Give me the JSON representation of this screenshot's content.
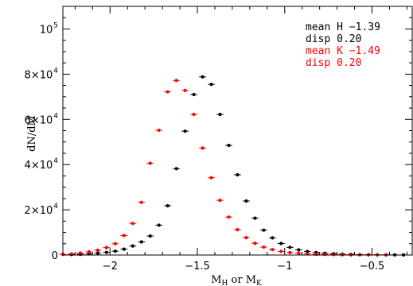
{
  "chart_data": {
    "type": "scatter",
    "xlabel": "M_H or M_K",
    "ylabel": "dN/dM",
    "xlim": [
      -2.27,
      -0.27
    ],
    "ylim": [
      0,
      110000
    ],
    "grid": false,
    "x_ticks": [
      {
        "value": -2,
        "label": "−2"
      },
      {
        "value": -1.5,
        "label": "−1.5"
      },
      {
        "value": -1,
        "label": "−1"
      },
      {
        "value": -0.5,
        "label": "−0.5"
      }
    ],
    "y_ticks": [
      {
        "value": 0,
        "mantissa": "0",
        "exp": ""
      },
      {
        "value": 20000,
        "mantissa": "2×10",
        "exp": "4"
      },
      {
        "value": 40000,
        "mantissa": "4×10",
        "exp": "4"
      },
      {
        "value": 60000,
        "mantissa": "6×10",
        "exp": "4"
      },
      {
        "value": 80000,
        "mantissa": "8×10",
        "exp": "4"
      },
      {
        "value": 100000,
        "mantissa": "10",
        "exp": "5"
      }
    ],
    "annotations": [
      {
        "text": "mean H −1.39",
        "color": "#000000"
      },
      {
        "text": "disp  0.20",
        "color": "#000000"
      },
      {
        "text": "mean K −1.49",
        "color": "#ff0000"
      },
      {
        "text": "disp  0.20",
        "color": "#ff0000"
      }
    ],
    "series": [
      {
        "color": "#000000",
        "xerr": 0.02,
        "x": [
          -2.22,
          -2.17,
          -2.12,
          -2.07,
          -2.02,
          -1.97,
          -1.92,
          -1.87,
          -1.82,
          -1.77,
          -1.72,
          -1.67,
          -1.62,
          -1.57,
          -1.52,
          -1.47,
          -1.42,
          -1.37,
          -1.32,
          -1.27,
          -1.22,
          -1.17,
          -1.12,
          -1.07,
          -1.02,
          -0.97,
          -0.92,
          -0.87,
          -0.82,
          -0.77,
          -0.72,
          -0.67,
          -0.62,
          -0.57,
          -0.52,
          -0.47,
          -0.42,
          -0.37,
          -0.32
        ],
        "y": [
          200,
          300,
          500,
          800,
          1200,
          1700,
          2600,
          4000,
          5800,
          8400,
          13200,
          21800,
          38200,
          54800,
          71000,
          78800,
          75500,
          62200,
          48500,
          35500,
          23900,
          16300,
          11000,
          7600,
          5100,
          3400,
          2300,
          1600,
          1100,
          800,
          600,
          400,
          300,
          200,
          150,
          100,
          80,
          60,
          40
        ]
      },
      {
        "color": "#ff0000",
        "xerr": 0.02,
        "x": [
          -2.27,
          -2.22,
          -2.17,
          -2.12,
          -2.07,
          -2.02,
          -1.97,
          -1.92,
          -1.87,
          -1.82,
          -1.77,
          -1.72,
          -1.67,
          -1.62,
          -1.57,
          -1.52,
          -1.47,
          -1.42,
          -1.37,
          -1.32,
          -1.27,
          -1.22,
          -1.17,
          -1.12,
          -1.07,
          -1.02,
          -0.97,
          -0.92,
          -0.87,
          -0.82,
          -0.77,
          -0.72,
          -0.67,
          -0.62,
          -0.57,
          -0.52,
          -0.47,
          -0.42
        ],
        "y": [
          300,
          500,
          900,
          1400,
          2100,
          3300,
          5000,
          8600,
          14000,
          23300,
          40600,
          55200,
          72200,
          77200,
          72800,
          62200,
          47300,
          34200,
          24200,
          16800,
          11200,
          7700,
          5200,
          3500,
          2400,
          1600,
          1100,
          800,
          500,
          350,
          250,
          180,
          120,
          80,
          60,
          40,
          30,
          20
        ]
      }
    ]
  }
}
